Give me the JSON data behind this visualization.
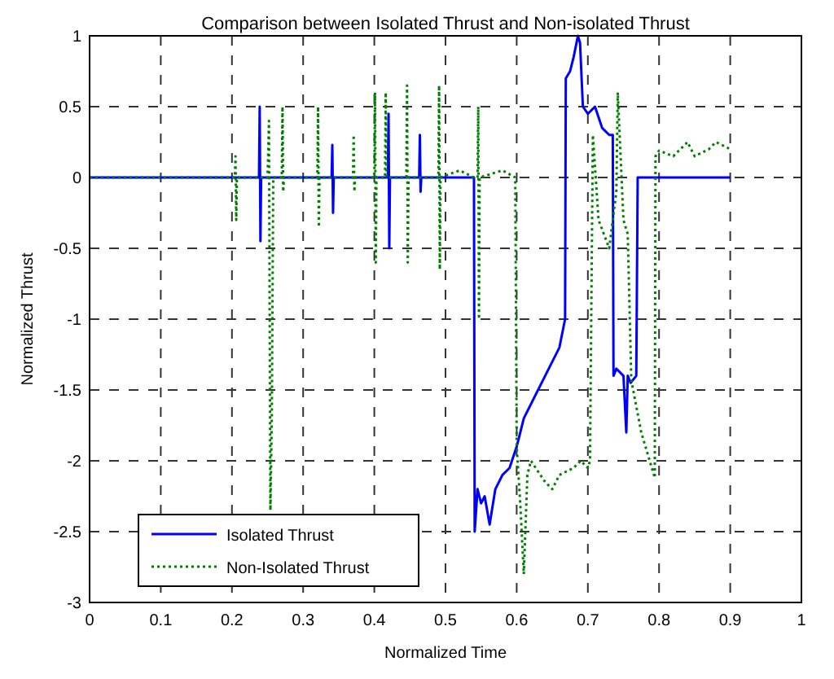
{
  "chart_data": {
    "type": "line",
    "title": "Comparison between Isolated Thrust and Non-isolated Thrust",
    "xlabel": "Normalized Time",
    "ylabel": "Normalized Thrust",
    "xlim": [
      0,
      1
    ],
    "ylim": [
      -3,
      1
    ],
    "xticks": [
      0,
      0.1,
      0.2,
      0.3,
      0.4,
      0.5,
      0.6,
      0.7,
      0.8,
      0.9,
      1
    ],
    "yticks": [
      -3,
      -2.5,
      -2,
      -1.5,
      -1,
      -0.5,
      0,
      0.5,
      1
    ],
    "grid": true,
    "legend": "bottom left",
    "series": [
      {
        "name": "Isolated Thrust",
        "color": "#0000ff",
        "line_style": "solid",
        "x": [
          0,
          0.1,
          0.2,
          0.238,
          0.239,
          0.24,
          0.241,
          0.3,
          0.34,
          0.341,
          0.342,
          0.343,
          0.344,
          0.4,
          0.419,
          0.42,
          0.421,
          0.422,
          0.423,
          0.463,
          0.464,
          0.465,
          0.466,
          0.467,
          0.5,
          0.54,
          0.541,
          0.545,
          0.55,
          0.555,
          0.562,
          0.57,
          0.58,
          0.59,
          0.6,
          0.61,
          0.62,
          0.64,
          0.66,
          0.668,
          0.669,
          0.675,
          0.68,
          0.686,
          0.689,
          0.693,
          0.7,
          0.71,
          0.72,
          0.73,
          0.735,
          0.736,
          0.74,
          0.75,
          0.754,
          0.756,
          0.76,
          0.768,
          0.77,
          0.78,
          0.8,
          0.85,
          0.9
        ],
        "values": [
          0,
          0,
          0,
          0,
          0.5,
          -0.45,
          0,
          0,
          0,
          0.23,
          -0.25,
          0,
          0,
          0,
          0,
          0.45,
          -0.5,
          0,
          0,
          0,
          0.3,
          -0.1,
          0,
          0,
          0,
          0,
          -2.5,
          -2.2,
          -2.3,
          -2.25,
          -2.45,
          -2.2,
          -2.1,
          -2.05,
          -1.9,
          -1.7,
          -1.6,
          -1.4,
          -1.2,
          -1.0,
          0.7,
          0.75,
          0.85,
          1,
          0.95,
          0.5,
          0.45,
          0.5,
          0.35,
          0.3,
          0.3,
          -1.4,
          -1.35,
          -1.4,
          -1.8,
          -1.4,
          -1.45,
          -1.4,
          0,
          0,
          0,
          0,
          0
        ]
      },
      {
        "name": "Non-Isolated Thrust",
        "color": "#008000",
        "line_style": "dotted",
        "x": [
          0,
          0.1,
          0.2,
          0.204,
          0.205,
          0.206,
          0.207,
          0.25,
          0.252,
          0.254,
          0.256,
          0.258,
          0.26,
          0.27,
          0.271,
          0.272,
          0.273,
          0.32,
          0.321,
          0.322,
          0.323,
          0.37,
          0.371,
          0.372,
          0.373,
          0.4,
          0.401,
          0.402,
          0.403,
          0.415,
          0.416,
          0.417,
          0.445,
          0.446,
          0.447,
          0.448,
          0.49,
          0.491,
          0.492,
          0.493,
          0.52,
          0.54,
          0.545,
          0.546,
          0.547,
          0.548,
          0.58,
          0.598,
          0.6,
          0.605,
          0.61,
          0.615,
          0.62,
          0.64,
          0.65,
          0.66,
          0.68,
          0.69,
          0.7,
          0.703,
          0.707,
          0.715,
          0.73,
          0.74,
          0.742,
          0.75,
          0.756,
          0.761,
          0.775,
          0.794,
          0.795,
          0.8,
          0.82,
          0.84,
          0.85,
          0.87,
          0.88,
          0.9
        ],
        "values": [
          0,
          0,
          0,
          0,
          0.15,
          -0.3,
          0,
          0,
          0.4,
          -2.35,
          -1.7,
          0,
          0,
          0,
          0.5,
          -0.1,
          0,
          0,
          0.5,
          -0.35,
          0,
          0,
          0.3,
          -0.1,
          0,
          0,
          0.6,
          -0.6,
          0,
          0,
          0.6,
          0,
          0,
          0.65,
          -0.6,
          0,
          0,
          0.65,
          -0.65,
          0,
          0.05,
          0,
          0,
          0.5,
          -1.0,
          0,
          0.05,
          0,
          -1.9,
          -2.3,
          -2.8,
          -2.1,
          -2.0,
          -2.15,
          -2.2,
          -2.1,
          -2.05,
          -2.0,
          -2.05,
          -2.0,
          0.3,
          -0.3,
          -0.5,
          -0.1,
          0.6,
          -0.3,
          -0.4,
          -1.43,
          -1.8,
          -2.12,
          0.15,
          0.19,
          0.15,
          0.25,
          0.15,
          0.2,
          0.25,
          0.2
        ]
      }
    ]
  }
}
